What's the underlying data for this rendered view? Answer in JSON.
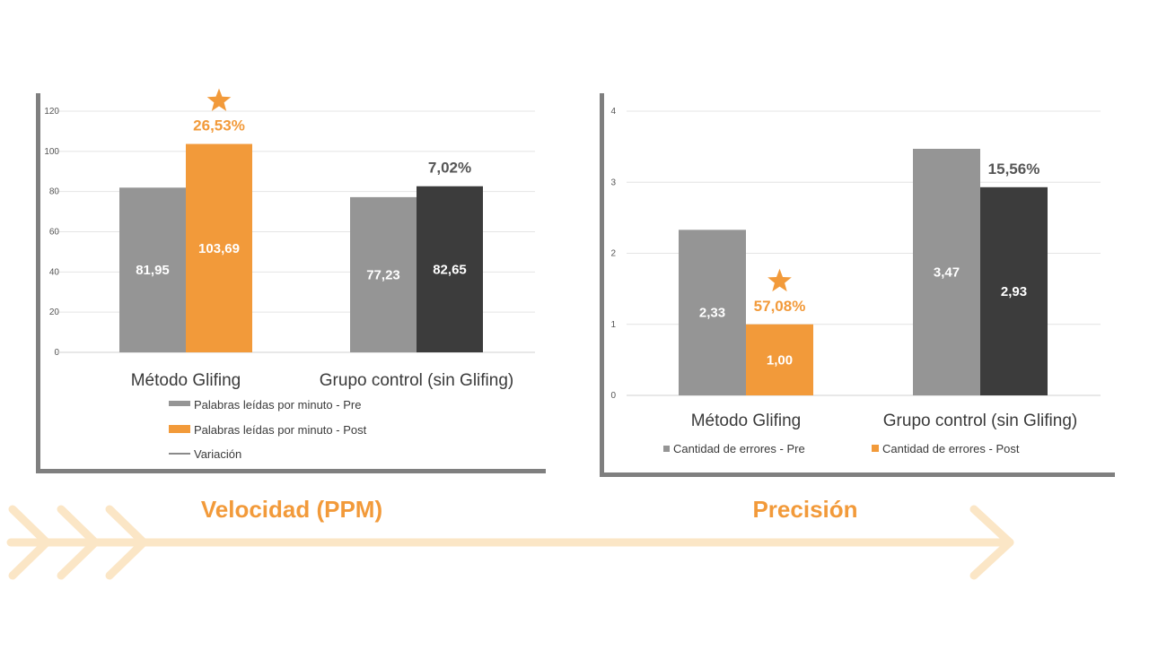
{
  "colors": {
    "pre": "#959595",
    "post_highlight": "#f29a3a",
    "post_control": "#3c3c3c",
    "pct_highlight": "#f29a3a",
    "pct_neutral": "#555555",
    "arrow": "#fbe6c6",
    "star": "#f29a3a"
  },
  "chart_data": [
    {
      "type": "bar",
      "caption": "Velocidad (PPM)",
      "categories": [
        "Método Glifing",
        "Grupo control (sin Glifing)"
      ],
      "series": [
        {
          "name": "Palabras leídas por minuto - Pre",
          "values": [
            81.95,
            77.23
          ],
          "labels": [
            "81,95",
            "77,23"
          ]
        },
        {
          "name": "Palabras leídas por minuto - Post",
          "values": [
            103.69,
            82.65
          ],
          "labels": [
            "103,69",
            "82,65"
          ]
        }
      ],
      "legend_extra": "Variación",
      "variation_labels": [
        "26,53%",
        "7,02%"
      ],
      "highlight_category": 0,
      "yticks": [
        "0",
        "20",
        "40",
        "60",
        "80",
        "100",
        "120"
      ],
      "ylim": [
        0,
        120
      ],
      "grid": true,
      "legend_position": "bottom"
    },
    {
      "type": "bar",
      "caption": "Precisión",
      "categories": [
        "Método Glifing",
        "Grupo control (sin Glifing)"
      ],
      "series": [
        {
          "name": "Cantidad de errores - Pre",
          "values": [
            2.33,
            3.47
          ],
          "labels": [
            "2,33",
            "3,47"
          ]
        },
        {
          "name": "Cantidad de errores - Post",
          "values": [
            1.0,
            2.93
          ],
          "labels": [
            "1,00",
            "2,93"
          ]
        }
      ],
      "variation_labels": [
        "57,08%",
        "15,56%"
      ],
      "highlight_category": 0,
      "yticks": [
        "0",
        "1",
        "2",
        "3",
        "4"
      ],
      "ylim": [
        0,
        4
      ],
      "grid": true,
      "legend_position": "bottom"
    }
  ]
}
